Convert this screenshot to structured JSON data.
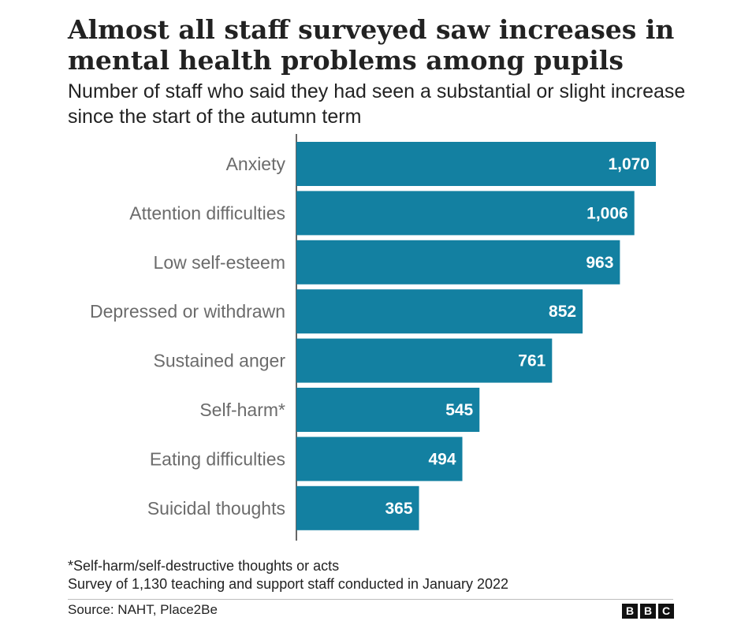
{
  "title": "Almost all staff surveyed saw increases in mental health problems among pupils",
  "subtitle": "Number of staff who said they had seen a substantial or slight increase since the start of the autumn term",
  "footnotes": [
    "*Self-harm/self-destructive thoughts or acts",
    "Survey of 1,130 teaching and support staff conducted in January 2022"
  ],
  "source": "Source: NAHT, Place2Be",
  "brand": {
    "letters": [
      "B",
      "B",
      "C"
    ]
  },
  "colors": {
    "bar": "#1380A1",
    "label": "#6b6b6b",
    "value": "#ffffff",
    "axis": "#333333"
  },
  "chart_data": {
    "type": "bar",
    "orientation": "horizontal",
    "categories": [
      "Anxiety",
      "Attention difficulties",
      "Low self-esteem",
      "Depressed or withdrawn",
      "Sustained anger",
      "Self-harm*",
      "Eating difficulties",
      "Suicidal thoughts"
    ],
    "values": [
      1070,
      1006,
      963,
      852,
      761,
      545,
      494,
      365
    ],
    "value_labels": [
      "1,070",
      "1,006",
      "963",
      "852",
      "761",
      "545",
      "494",
      "365"
    ],
    "xlim": [
      0,
      1070
    ],
    "grid": false,
    "legend": "none"
  }
}
